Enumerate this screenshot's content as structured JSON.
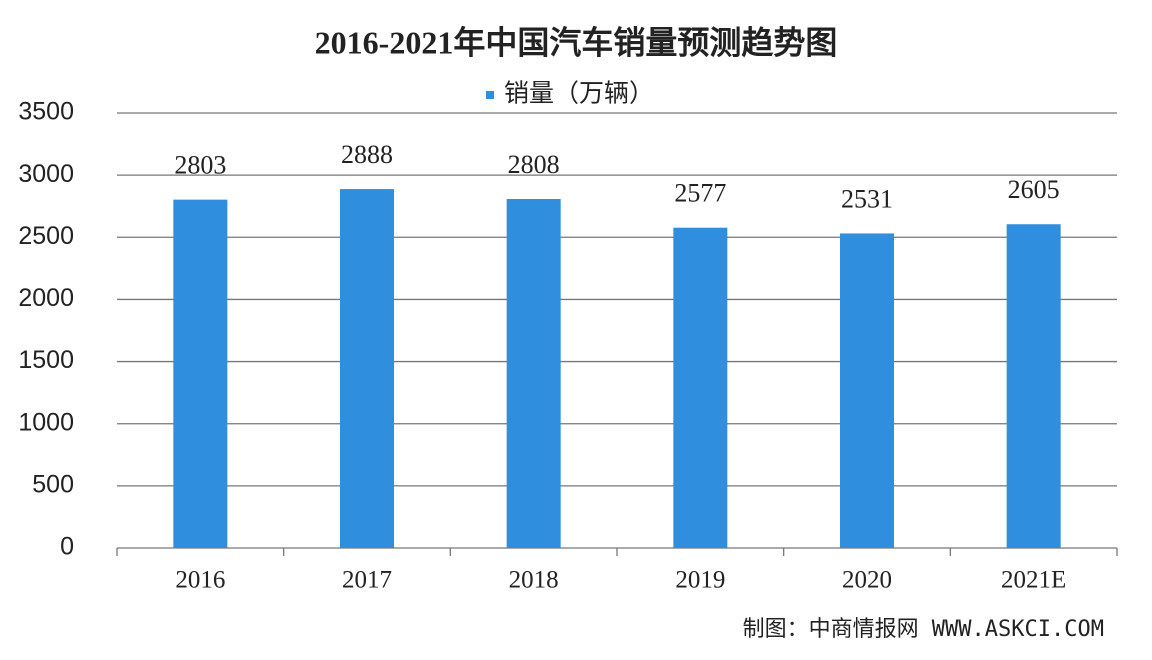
{
  "chart_data": {
    "type": "bar",
    "title": "2016-2021年中国汽车销量预测趋势图",
    "categories": [
      "2016",
      "2017",
      "2018",
      "2019",
      "2020",
      "2021E"
    ],
    "series": [
      {
        "name": "销量（万辆）",
        "color": "#2f8fde",
        "values": [
          2803,
          2888,
          2808,
          2577,
          2531,
          2605
        ]
      }
    ],
    "ylim": [
      0,
      3500
    ],
    "yticks": [
      0,
      500,
      1000,
      1500,
      2000,
      2500,
      3000,
      3500
    ],
    "grid": true,
    "source": "制图：中商情报网 WWW.ASKCI.COM"
  }
}
